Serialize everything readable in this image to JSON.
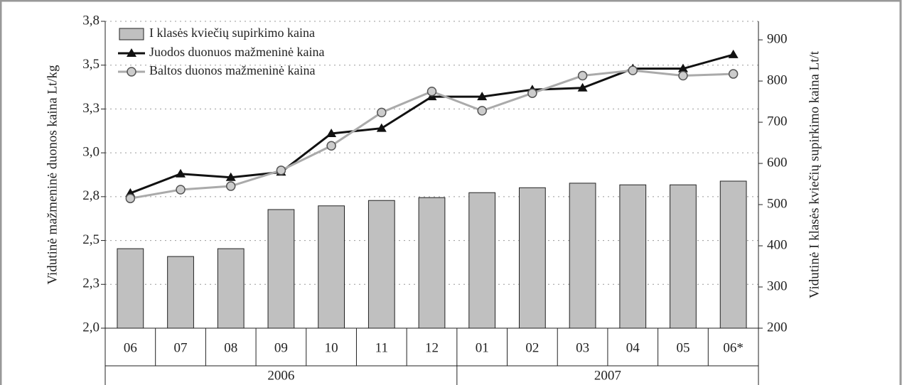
{
  "chart_data": {
    "type": "bar_line",
    "categories": [
      "06",
      "07",
      "08",
      "09",
      "10",
      "11",
      "12",
      "01",
      "02",
      "03",
      "04",
      "05",
      "06*"
    ],
    "groups": [
      "2006",
      "2007"
    ],
    "ylabel": "Vidutinė mažmeninė duonos kaina Lt/kg",
    "y2label": "Vidutinė I klasės kviečių supirkimo kaina Lt/t",
    "ylim": [
      2,
      3.75
    ],
    "yticks": [
      {
        "value": 2,
        "label": "2,0"
      },
      {
        "value": 2.25,
        "label": "2,3"
      },
      {
        "value": 2.5,
        "label": "2,5"
      },
      {
        "value": 2.75,
        "label": "2,8"
      },
      {
        "value": 3,
        "label": "3,0"
      },
      {
        "value": 3.25,
        "label": "3,3"
      },
      {
        "value": 3.5,
        "label": "3,5"
      },
      {
        "value": 3.75,
        "label": "3,8"
      }
    ],
    "y2lim": [
      200,
      945
    ],
    "y2ticks": [
      200,
      300,
      400,
      500,
      600,
      700,
      800,
      900
    ],
    "grid": true,
    "legend": "upper left",
    "series": [
      {
        "name": "I klasės kviečių supirkimo kaina",
        "type": "bar",
        "axis": "y2",
        "color": "#c0c0c0",
        "values": [
          393,
          374,
          393,
          488,
          497,
          510,
          517,
          529,
          541,
          552,
          548,
          548,
          557
        ]
      },
      {
        "name": "Juodos duonuos mažmeninė kaina",
        "type": "line",
        "marker": "triangle",
        "color": "#111111",
        "values": [
          2.77,
          2.88,
          2.86,
          2.89,
          3.11,
          3.14,
          3.32,
          3.32,
          3.36,
          3.37,
          3.48,
          3.48,
          3.56
        ]
      },
      {
        "name": "Baltos duonos mažmeninė kaina",
        "type": "line",
        "marker": "circle",
        "color": "#aaaaaa",
        "values": [
          2.74,
          2.79,
          2.81,
          2.9,
          3.04,
          3.23,
          3.35,
          3.24,
          3.34,
          3.44,
          3.47,
          3.44,
          3.45
        ]
      }
    ]
  }
}
